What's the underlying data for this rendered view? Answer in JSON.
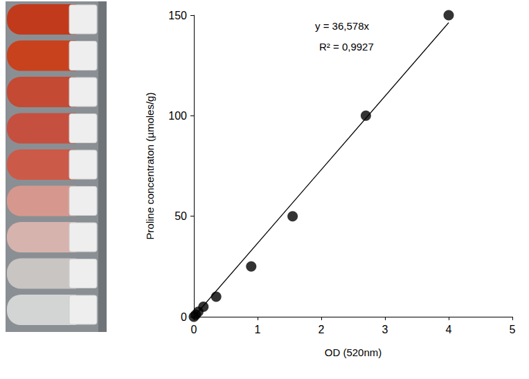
{
  "chart_data": {
    "type": "scatter",
    "x_label": "OD (520nm)",
    "y_label": "Proline concentraton (µmoles/g)",
    "annotations": [
      "y = 36,578x",
      "R² = 0,9927"
    ],
    "xlim": [
      0,
      5
    ],
    "xticks": [
      0,
      1,
      2,
      3,
      4,
      5
    ],
    "ylim": [
      0,
      150
    ],
    "yticks": [
      0,
      50,
      100,
      150
    ],
    "grid": false,
    "series": [
      {
        "type": "scatter",
        "marker": "circle",
        "color": "#000000",
        "x": [
          0,
          0.03,
          0.07,
          0.15,
          0.35,
          0.9,
          1.55,
          2.7,
          4.0
        ],
        "values": [
          0,
          1,
          2.5,
          5,
          10,
          25,
          50,
          100,
          150
        ]
      },
      {
        "type": "line",
        "line_style": "solid",
        "color": "#000000",
        "x": [
          0,
          4.0
        ],
        "values": [
          0,
          146.3
        ]
      }
    ]
  }
}
